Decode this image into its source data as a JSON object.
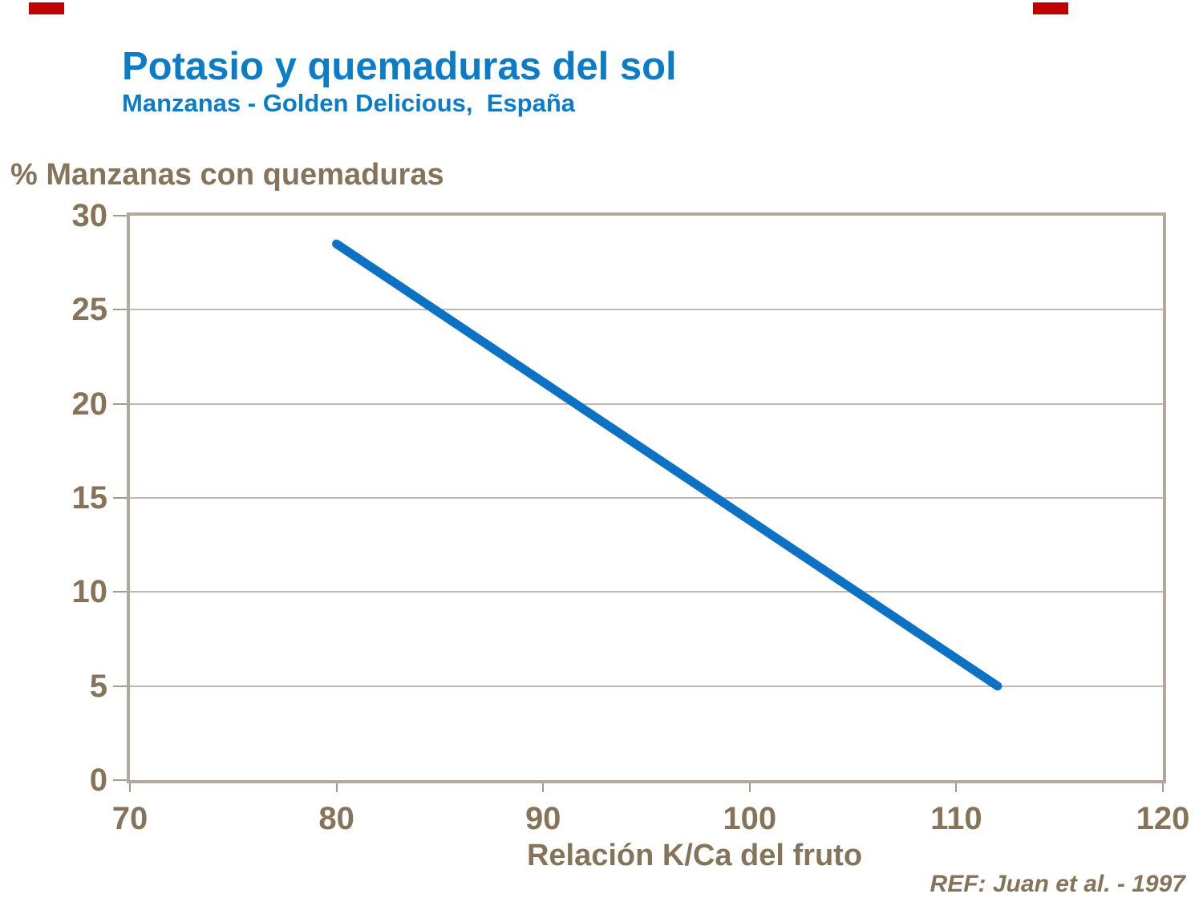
{
  "slide": {
    "corner_marks_color": "#c00000"
  },
  "colors": {
    "title_blue": "#0b7cc8",
    "line_blue": "#0e72c4",
    "text_brown": "#857459",
    "axis_border": "#b2a89c",
    "gridline": "#bfb8ad",
    "tick": "#a49a8d",
    "background": "#ffffff"
  },
  "chart_data": {
    "type": "line",
    "title": "Potasio y quemaduras del sol",
    "subtitle": "Manzanas - Golden Delicious,  España",
    "ylabel": "% Manzanas con quemaduras",
    "xlabel": "Relación K/Ca del fruto",
    "annotation": "REF: Juan et al. - 1997",
    "xlim": [
      70,
      120
    ],
    "ylim": [
      0,
      30
    ],
    "xticks": [
      70,
      80,
      90,
      100,
      110,
      120
    ],
    "yticks": [
      0,
      5,
      10,
      15,
      20,
      25,
      30
    ],
    "grid": "horizontal",
    "legend": "none",
    "series": [
      {
        "name": "% manzanas con quemaduras",
        "x": [
          80,
          112
        ],
        "y": [
          28.5,
          5
        ],
        "color": "#0e72c4",
        "stroke_width": 11
      }
    ]
  }
}
